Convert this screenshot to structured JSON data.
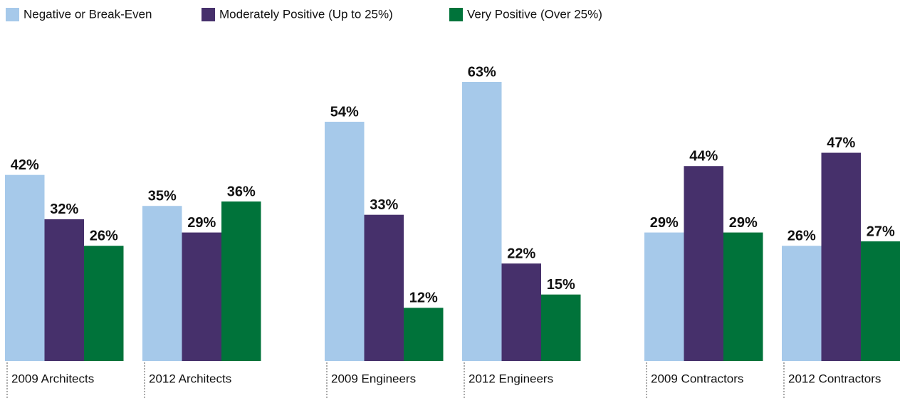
{
  "chart_data": {
    "type": "bar",
    "categories": [
      "2009 Architects",
      "2012 Architects",
      "2009 Engineers",
      "2012 Engineers",
      "2009 Contractors",
      "2012 Contractors"
    ],
    "series": [
      {
        "name": "Negative or Break-Even",
        "color": "#a6c9ea",
        "values": [
          42,
          35,
          54,
          63,
          29,
          26
        ],
        "value_labels": [
          "42%",
          "35%",
          "54%",
          "63%",
          "29%",
          "26%"
        ]
      },
      {
        "name": "Moderately Positive (Up to 25%)",
        "color": "#46306b",
        "values": [
          32,
          29,
          33,
          22,
          44,
          47
        ],
        "value_labels": [
          "32%",
          "29%",
          "33%",
          "22%",
          "44%",
          "47%"
        ]
      },
      {
        "name": "Very Positive (Over 25%)",
        "color": "#00733a",
        "values": [
          26,
          36,
          12,
          15,
          29,
          27
        ],
        "value_labels": [
          "26%",
          "36%",
          "12%",
          "15%",
          "29%",
          "27%"
        ]
      }
    ],
    "legend": "top-left"
  }
}
